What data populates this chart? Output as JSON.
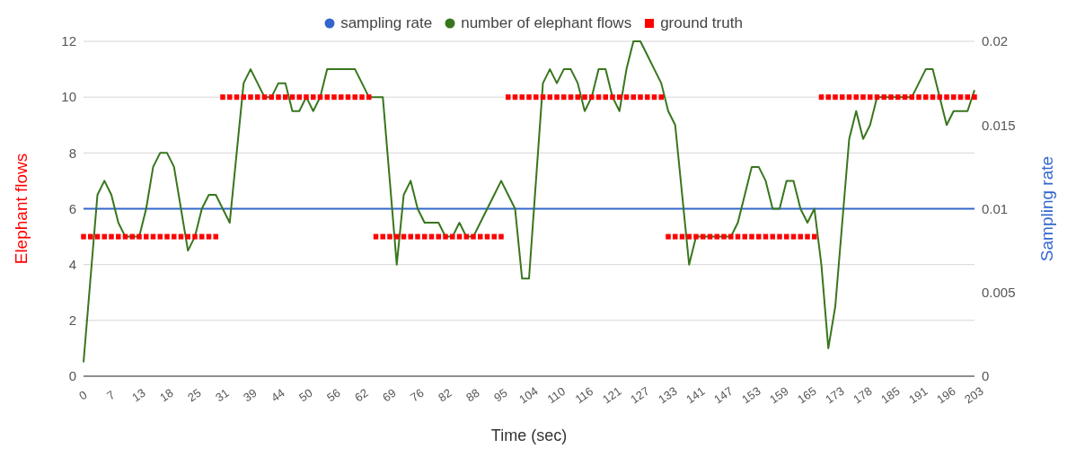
{
  "chart_data": {
    "type": "line",
    "xlabel": "Time (sec)",
    "ylabel": "Elephant flows",
    "y2label": "Sampling rate",
    "legend": "top",
    "grid": "y",
    "categories": [
      "0",
      null,
      null,
      null,
      "7",
      null,
      null,
      null,
      "13",
      null,
      null,
      null,
      "18",
      null,
      null,
      null,
      "25",
      null,
      null,
      null,
      "31",
      null,
      null,
      null,
      "39",
      null,
      null,
      null,
      "44",
      null,
      null,
      null,
      "50",
      null,
      null,
      null,
      "56",
      null,
      null,
      null,
      "62",
      null,
      null,
      null,
      "69",
      null,
      null,
      null,
      "76",
      null,
      null,
      null,
      "82",
      null,
      null,
      null,
      "88",
      null,
      null,
      null,
      "95",
      null,
      null,
      null,
      "104",
      null,
      null,
      null,
      "110",
      null,
      null,
      null,
      "116",
      null,
      null,
      null,
      "121",
      null,
      null,
      null,
      "127",
      null,
      null,
      null,
      "133",
      null,
      null,
      null,
      "141",
      null,
      null,
      null,
      "147",
      null,
      null,
      null,
      "153",
      null,
      null,
      null,
      "159",
      null,
      null,
      null,
      "165",
      null,
      null,
      null,
      "173",
      null,
      null,
      null,
      "178",
      null,
      null,
      null,
      "185",
      null,
      null,
      null,
      "191",
      null,
      null,
      null,
      "196",
      null,
      null,
      null,
      "203"
    ],
    "ylim": [
      0,
      12
    ],
    "yticks": [
      0,
      2,
      4,
      6,
      8,
      10,
      12
    ],
    "y2lim": [
      0,
      0.02
    ],
    "y2ticks": [
      0,
      0.005,
      0.01,
      0.015,
      0.02
    ],
    "series": [
      {
        "name": "sampling rate",
        "axis": "y2",
        "color": "#3366cc",
        "values": [
          0.01,
          0.01,
          0.01,
          0.01,
          0.01,
          0.01,
          0.01,
          0.01,
          0.01,
          0.01,
          0.01,
          0.01,
          0.01,
          0.01,
          0.01,
          0.01,
          0.01,
          0.01,
          0.01,
          0.01,
          0.01,
          0.01,
          0.01,
          0.01,
          0.01,
          0.01,
          0.01,
          0.01,
          0.01,
          0.01,
          0.01,
          0.01,
          0.01,
          0.01,
          0.01,
          0.01,
          0.01,
          0.01,
          0.01,
          0.01,
          0.01,
          0.01,
          0.01,
          0.01,
          0.01,
          0.01,
          0.01,
          0.01,
          0.01,
          0.01,
          0.01,
          0.01,
          0.01,
          0.01,
          0.01,
          0.01,
          0.01,
          0.01,
          0.01,
          0.01,
          0.01,
          0.01,
          0.01,
          0.01,
          0.01,
          0.01,
          0.01,
          0.01,
          0.01,
          0.01,
          0.01,
          0.01,
          0.01,
          0.01,
          0.01,
          0.01,
          0.01,
          0.01,
          0.01,
          0.01,
          0.01,
          0.01,
          0.01,
          0.01,
          0.01,
          0.01,
          0.01,
          0.01,
          0.01,
          0.01,
          0.01,
          0.01,
          0.01,
          0.01,
          0.01,
          0.01,
          0.01,
          0.01,
          0.01,
          0.01,
          0.01,
          0.01,
          0.01,
          0.01,
          0.01,
          0.01,
          0.01,
          0.01,
          0.01,
          0.01,
          0.01,
          0.01,
          0.01,
          0.01,
          0.01,
          0.01,
          0.01,
          0.01,
          0.01,
          0.01,
          0.01,
          0.01,
          0.01,
          0.01,
          0.01,
          0.01,
          0.01,
          0.01,
          0.01
        ]
      },
      {
        "name": "number of elephant flows",
        "color": "#38761d",
        "values": [
          0.5,
          3.5,
          6.5,
          7,
          6.5,
          5.5,
          5,
          5,
          5,
          6,
          7.5,
          8,
          8,
          7.5,
          6,
          4.5,
          5,
          6,
          6.5,
          6.5,
          6,
          5.5,
          8,
          10.5,
          11,
          10.5,
          10,
          10,
          10.5,
          10.5,
          9.5,
          9.5,
          10,
          9.5,
          10,
          11,
          11,
          11,
          11,
          11,
          10.5,
          10,
          10,
          10,
          7,
          4,
          6.5,
          7,
          6,
          5.5,
          5.5,
          5.5,
          5,
          5,
          5.5,
          5,
          5,
          5.5,
          6,
          6.5,
          7,
          6.5,
          6,
          3.5,
          3.5,
          7,
          10.5,
          11,
          10.5,
          11,
          11,
          10.5,
          9.5,
          10,
          11,
          11,
          10,
          9.5,
          11,
          12,
          12,
          11.5,
          11,
          10.5,
          9.5,
          9,
          6.5,
          4,
          5,
          5,
          5,
          5,
          5,
          5,
          5.5,
          6.5,
          7.5,
          7.5,
          7,
          6,
          6,
          7,
          7,
          6,
          5.5,
          6,
          4,
          1,
          2.5,
          5.5,
          8.5,
          9.5,
          8.5,
          9,
          10,
          10,
          10,
          10,
          10,
          10,
          10.5,
          11,
          11,
          10,
          9,
          9.5,
          9.5,
          9.5,
          10.25
        ]
      },
      {
        "name": "ground truth",
        "type": "scatter",
        "marker": "square",
        "color": "#ff0000",
        "values": [
          5,
          5,
          5,
          5,
          5,
          5,
          5,
          5,
          5,
          5,
          5,
          5,
          5,
          5,
          5,
          5,
          5,
          5,
          5,
          5,
          10,
          10,
          10,
          10,
          10,
          10,
          10,
          10,
          10,
          10,
          10,
          10,
          10,
          10,
          10,
          10,
          10,
          10,
          10,
          10,
          10,
          10,
          5,
          5,
          5,
          5,
          5,
          5,
          5,
          5,
          5,
          5,
          5,
          5,
          5,
          5,
          5,
          5,
          5,
          5,
          5,
          10,
          10,
          10,
          10,
          10,
          10,
          10,
          10,
          10,
          10,
          10,
          10,
          10,
          10,
          10,
          10,
          10,
          10,
          10,
          10,
          10,
          10,
          10,
          5,
          5,
          5,
          5,
          5,
          5,
          5,
          5,
          5,
          5,
          5,
          5,
          5,
          5,
          5,
          5,
          5,
          5,
          5,
          5,
          5,
          5,
          10,
          10,
          10,
          10,
          10,
          10,
          10,
          10,
          10,
          10,
          10,
          10,
          10,
          10,
          10,
          10,
          10,
          10,
          10,
          10,
          10,
          10,
          10
        ]
      }
    ]
  }
}
